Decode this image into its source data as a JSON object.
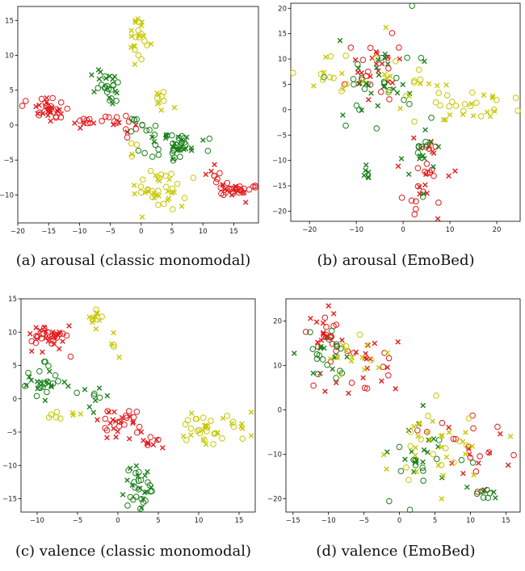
{
  "colors": {
    "red": "#e41a1c",
    "green": "#1a7f1a",
    "yellow": "#c8c800"
  },
  "chart_data": [
    {
      "type": "scatter",
      "caption": "(a)  arousal (classic monomodal)",
      "xlim": [
        -20,
        19
      ],
      "ylim": [
        -14,
        17
      ],
      "xticks": [
        -20,
        -15,
        -10,
        -5,
        0,
        5,
        10,
        15
      ],
      "yticks": [
        -10,
        -5,
        0,
        5,
        10,
        15
      ],
      "markers": [
        "circle",
        "x"
      ],
      "series": [
        {
          "color": "red",
          "clusters": [
            {
              "cx": -15,
              "cy": 2.3,
              "sx": 1.3,
              "sy": 0.8,
              "n": 36
            },
            {
              "cx": -9,
              "cy": 0.2,
              "sx": 1.2,
              "sy": 0.6,
              "n": 10
            },
            {
              "cx": -4,
              "cy": 0.4,
              "sx": 1.6,
              "sy": 0.6,
              "n": 10
            },
            {
              "cx": 15,
              "cy": -9.3,
              "sx": 1.5,
              "sy": 0.5,
              "n": 32
            },
            {
              "cx": 11.5,
              "cy": -8,
              "sx": 0.7,
              "sy": 1.3,
              "n": 8
            },
            {
              "cx": -1.5,
              "cy": -1,
              "sx": 1,
              "sy": 1,
              "n": 5
            }
          ]
        },
        {
          "color": "green",
          "clusters": [
            {
              "cx": -5.5,
              "cy": 5.6,
              "sx": 1.2,
              "sy": 1.5,
              "n": 28
            },
            {
              "cx": 5,
              "cy": -3,
              "sx": 2.5,
              "sy": 0.9,
              "n": 48
            },
            {
              "cx": 0,
              "cy": 0,
              "sx": 1.1,
              "sy": 0.7,
              "n": 10
            }
          ]
        },
        {
          "color": "yellow",
          "clusters": [
            {
              "cx": -0.5,
              "cy": 12.5,
              "sx": 0.7,
              "sy": 1.7,
              "n": 24
            },
            {
              "cx": 3.5,
              "cy": 3.5,
              "sx": 0.8,
              "sy": 0.8,
              "n": 10
            },
            {
              "cx": 3,
              "cy": -9,
              "sx": 2,
              "sy": 1.5,
              "n": 40
            },
            {
              "cx": -1.5,
              "cy": -3.5,
              "sx": 0.5,
              "sy": 0.8,
              "n": 4
            }
          ]
        }
      ]
    },
    {
      "type": "scatter",
      "caption": "(b)  arousal (EmoBed)",
      "xlim": [
        -24,
        25
      ],
      "ylim": [
        -22,
        21
      ],
      "xticks": [
        -20,
        -10,
        0,
        10,
        20
      ],
      "yticks": [
        -20,
        -15,
        -10,
        -5,
        0,
        5,
        10,
        15,
        20
      ],
      "markers": [
        "circle",
        "x"
      ],
      "series": [
        {
          "color": "red",
          "clusters": [
            {
              "cx": -5,
              "cy": 9,
              "sx": 3.5,
              "sy": 3.5,
              "n": 30
            },
            {
              "cx": 5,
              "cy": -12,
              "sx": 2.5,
              "sy": 4,
              "n": 34
            }
          ]
        },
        {
          "color": "green",
          "clusters": [
            {
              "cx": -5,
              "cy": 5,
              "sx": 5,
              "sy": 5,
              "n": 45
            },
            {
              "cx": 4,
              "cy": -10,
              "sx": 3,
              "sy": 4,
              "n": 18
            },
            {
              "cx": -8,
              "cy": -12,
              "sx": 0.5,
              "sy": 1,
              "n": 6
            }
          ]
        },
        {
          "color": "yellow",
          "clusters": [
            {
              "cx": -15,
              "cy": 7,
              "sx": 3,
              "sy": 2,
              "n": 16
            },
            {
              "cx": 16,
              "cy": 0,
              "sx": 4,
              "sy": 1.5,
              "n": 24
            },
            {
              "cx": 2,
              "cy": 3,
              "sx": 5,
              "sy": 4,
              "n": 24
            }
          ]
        }
      ]
    },
    {
      "type": "scatter",
      "caption": "(c)  valence (classic monomodal)",
      "xlim": [
        -12,
        17
      ],
      "ylim": [
        -17,
        15
      ],
      "xticks": [
        -10,
        -5,
        0,
        5,
        10,
        15
      ],
      "yticks": [
        -15,
        -10,
        -5,
        0,
        5,
        10,
        15
      ],
      "markers": [
        "circle",
        "x"
      ],
      "series": [
        {
          "color": "red",
          "clusters": [
            {
              "cx": -8.5,
              "cy": 9.5,
              "sx": 1.3,
              "sy": 1.2,
              "n": 40
            },
            {
              "cx": 0.5,
              "cy": -3.5,
              "sx": 1.3,
              "sy": 1.3,
              "n": 30
            },
            {
              "cx": 4,
              "cy": -6.5,
              "sx": 0.8,
              "sy": 0.5,
              "n": 10
            }
          ]
        },
        {
          "color": "green",
          "clusters": [
            {
              "cx": -9,
              "cy": 2.5,
              "sx": 1.5,
              "sy": 1.2,
              "n": 30
            },
            {
              "cx": 2.5,
              "cy": -13,
              "sx": 1,
              "sy": 1.8,
              "n": 34
            },
            {
              "cx": -3,
              "cy": 0.5,
              "sx": 1.5,
              "sy": 1.5,
              "n": 10
            }
          ]
        },
        {
          "color": "yellow",
          "clusters": [
            {
              "cx": -2.5,
              "cy": 12,
              "sx": 0.6,
              "sy": 0.8,
              "n": 12
            },
            {
              "cx": 12,
              "cy": -4.5,
              "sx": 2.3,
              "sy": 1.2,
              "n": 40
            },
            {
              "cx": -7,
              "cy": -2.5,
              "sx": 1.5,
              "sy": 0.8,
              "n": 8
            },
            {
              "cx": 0,
              "cy": 8,
              "sx": 0.5,
              "sy": 1,
              "n": 5
            }
          ]
        }
      ]
    },
    {
      "type": "scatter",
      "caption": "(d)  valence (EmoBed)",
      "xlim": [
        -16,
        17
      ],
      "ylim": [
        -23,
        25
      ],
      "xticks": [
        -15,
        -10,
        -5,
        0,
        5,
        10,
        15
      ],
      "yticks": [
        -20,
        -10,
        0,
        10,
        20
      ],
      "markers": [
        "circle",
        "x"
      ],
      "series": [
        {
          "color": "red",
          "clusters": [
            {
              "cx": -10,
              "cy": 17,
              "sx": 1.5,
              "sy": 3,
              "n": 30
            },
            {
              "cx": -5,
              "cy": 8,
              "sx": 3,
              "sy": 3,
              "n": 25
            },
            {
              "cx": 11,
              "cy": -10,
              "sx": 3,
              "sy": 5,
              "n": 25
            }
          ]
        },
        {
          "color": "green",
          "clusters": [
            {
              "cx": -10,
              "cy": 12,
              "sx": 2,
              "sy": 3,
              "n": 25
            },
            {
              "cx": 3,
              "cy": -10,
              "sx": 3,
              "sy": 5,
              "n": 30
            },
            {
              "cx": 12,
              "cy": -19,
              "sx": 1.5,
              "sy": 1,
              "n": 10
            }
          ]
        },
        {
          "color": "yellow",
          "clusters": [
            {
              "cx": -5,
              "cy": 12,
              "sx": 2,
              "sy": 2,
              "n": 15
            },
            {
              "cx": 5,
              "cy": -8,
              "sx": 4,
              "sy": 5,
              "n": 40
            }
          ]
        }
      ]
    }
  ]
}
